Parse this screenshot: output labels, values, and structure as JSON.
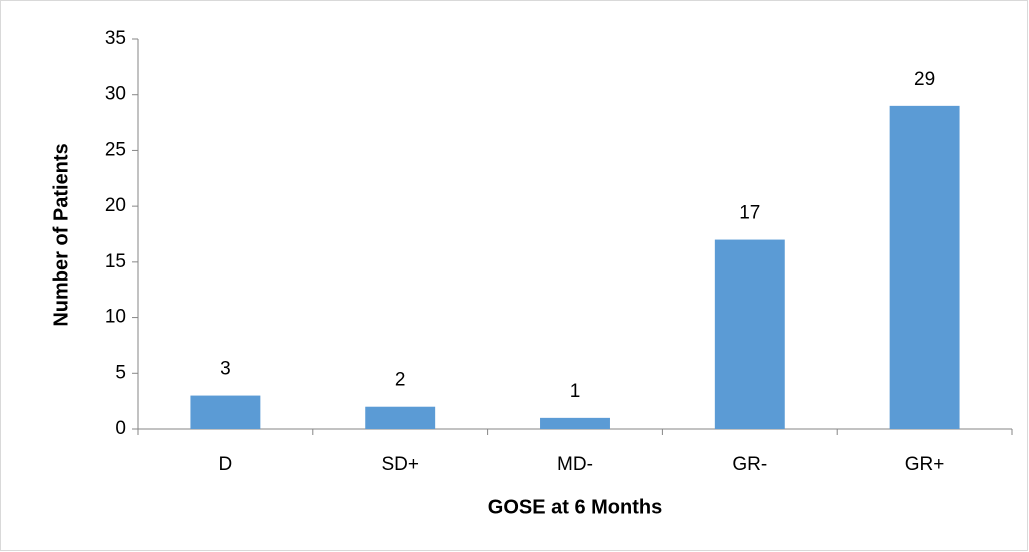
{
  "chart_data": {
    "type": "bar",
    "x_label": "GOSE at 6 Months",
    "y_label": "Number of Patients",
    "categories": [
      "D",
      "SD+",
      "MD-",
      "GR-",
      "GR+"
    ],
    "values": [
      3,
      2,
      1,
      17,
      29
    ],
    "color": "#5b9bd5",
    "ylim": [
      0,
      35
    ],
    "yticks": [
      0,
      5,
      10,
      15,
      20,
      25,
      30,
      35
    ],
    "grid": false,
    "data_labels": true
  }
}
